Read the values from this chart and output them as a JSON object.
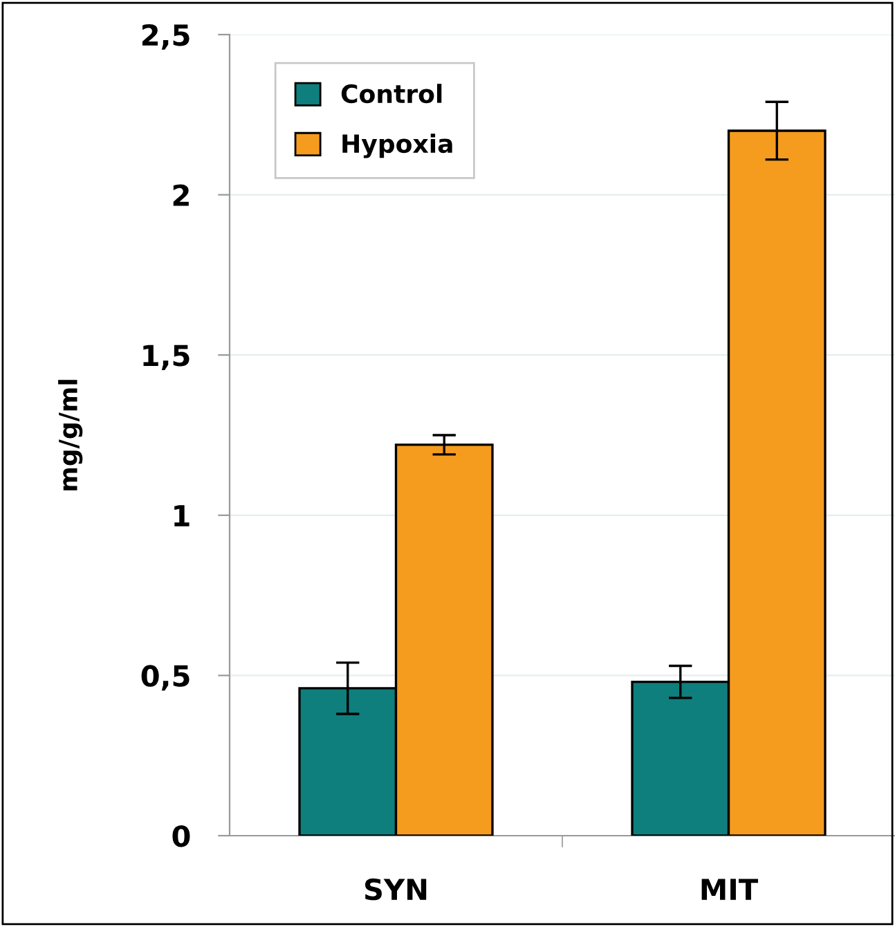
{
  "chart_data": {
    "type": "bar",
    "ylabel": "mg/g/ml",
    "categories": [
      "SYN",
      "MIT"
    ],
    "series": [
      {
        "name": "Control",
        "color": "#0e7f7c",
        "values": [
          0.46,
          0.48
        ],
        "errors": [
          0.08,
          0.05
        ]
      },
      {
        "name": "Hypoxia",
        "color": "#f59b1e",
        "values": [
          1.22,
          2.2
        ],
        "errors": [
          0.03,
          0.09
        ]
      }
    ],
    "ylim": [
      0,
      2.5
    ],
    "yticks": [
      0,
      {
        "value": 0.5,
        "label": "0,5"
      },
      1,
      {
        "value": 1.5,
        "label": "1,5"
      },
      2,
      {
        "value": 2.5,
        "label": "2,5"
      }
    ],
    "grid": "y",
    "legend": "top left"
  }
}
